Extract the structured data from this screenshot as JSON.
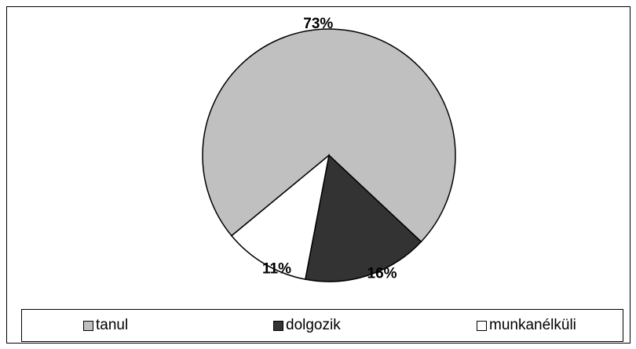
{
  "chart_data": {
    "type": "pie",
    "categories": [
      "tanul",
      "dolgozik",
      "munkanélküli"
    ],
    "values": [
      73,
      16,
      11
    ],
    "labels": [
      "73%",
      "16%",
      "11%"
    ],
    "colors": [
      "#c0c0c0",
      "#333333",
      "#ffffff"
    ],
    "legend_position": "bottom"
  }
}
